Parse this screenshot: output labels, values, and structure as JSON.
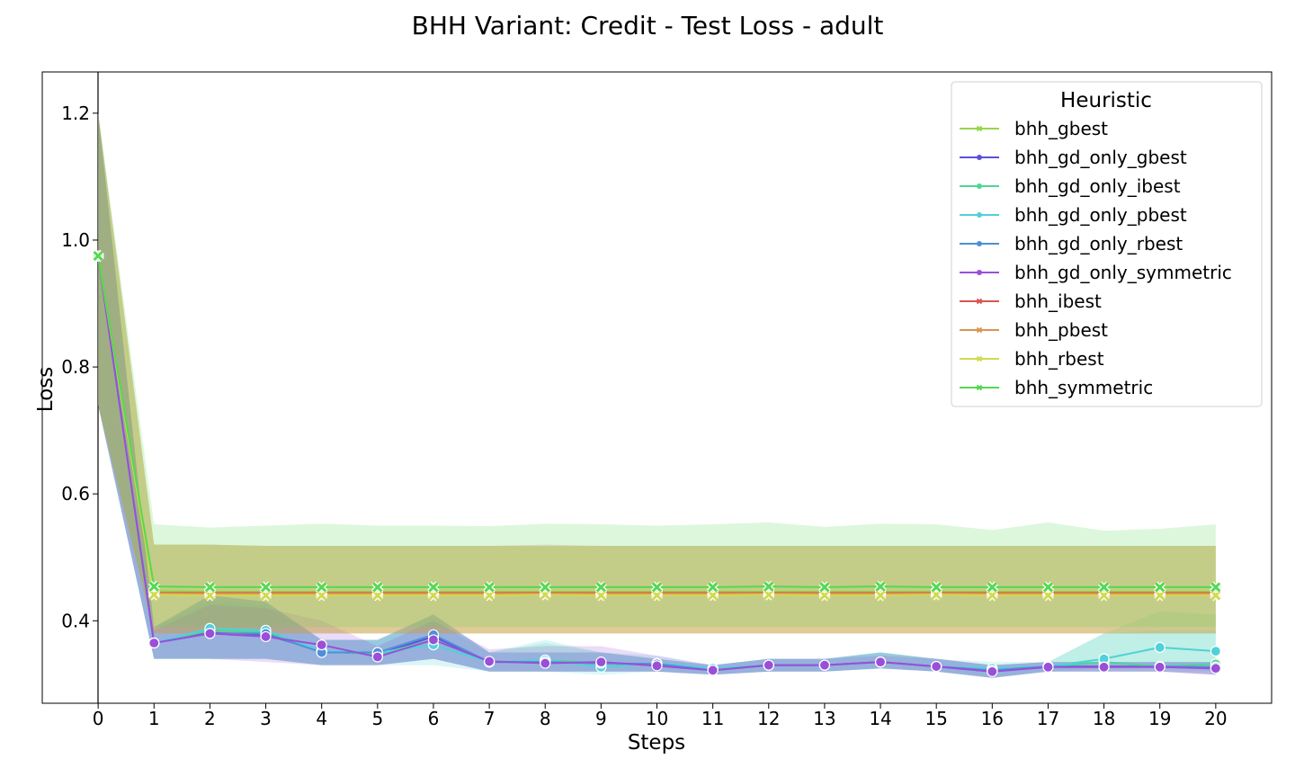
{
  "chart_data": {
    "type": "line",
    "title": "BHH Variant: Credit - Test Loss - adult",
    "xlabel": "Steps",
    "ylabel": "Loss",
    "x": [
      0,
      1,
      2,
      3,
      4,
      5,
      6,
      7,
      8,
      9,
      10,
      11,
      12,
      13,
      14,
      15,
      16,
      17,
      18,
      19,
      20
    ],
    "xlim": [
      -1,
      21
    ],
    "ylim": [
      0.27,
      1.265
    ],
    "yticks": [
      0.4,
      0.6,
      0.8,
      1.0,
      1.2
    ],
    "ytick_labels": [
      "0.4",
      "0.6",
      "0.8",
      "1.0",
      "1.2"
    ],
    "grid": false,
    "legend": {
      "title": "Heuristic",
      "placement": "top-right"
    },
    "series": [
      {
        "name": "bhh_gbest",
        "color": "#96d64a",
        "marker": "x",
        "values": [
          0.975,
          0.447,
          0.446,
          0.446,
          0.446,
          0.446,
          0.446,
          0.446,
          0.446,
          0.446,
          0.446,
          0.446,
          0.446,
          0.446,
          0.446,
          0.446,
          0.446,
          0.446,
          0.446,
          0.446,
          0.446
        ],
        "band": [
          [
            0.74,
            1.2
          ],
          [
            0.38,
            0.52
          ],
          [
            0.38,
            0.52
          ],
          [
            0.38,
            0.518
          ],
          [
            0.38,
            0.518
          ],
          [
            0.38,
            0.518
          ],
          [
            0.38,
            0.518
          ],
          [
            0.38,
            0.518
          ],
          [
            0.38,
            0.518
          ],
          [
            0.38,
            0.518
          ],
          [
            0.38,
            0.518
          ],
          [
            0.38,
            0.518
          ],
          [
            0.38,
            0.518
          ],
          [
            0.38,
            0.518
          ],
          [
            0.38,
            0.518
          ],
          [
            0.38,
            0.518
          ],
          [
            0.38,
            0.518
          ],
          [
            0.38,
            0.518
          ],
          [
            0.38,
            0.518
          ],
          [
            0.38,
            0.518
          ],
          [
            0.38,
            0.518
          ]
        ]
      },
      {
        "name": "bhh_gd_only_gbest",
        "color": "#5a52d9",
        "marker": "o",
        "values": [
          0.975,
          0.365,
          0.381,
          0.378,
          0.352,
          0.347,
          0.375,
          0.335,
          0.335,
          0.333,
          0.33,
          0.322,
          0.33,
          0.33,
          0.335,
          0.328,
          0.32,
          0.328,
          0.328,
          0.328,
          0.326
        ],
        "band": [
          [
            0.74,
            1.2
          ],
          [
            0.34,
            0.39
          ],
          [
            0.34,
            0.44
          ],
          [
            0.34,
            0.43
          ],
          [
            0.33,
            0.37
          ],
          [
            0.33,
            0.37
          ],
          [
            0.34,
            0.41
          ],
          [
            0.32,
            0.35
          ],
          [
            0.32,
            0.35
          ],
          [
            0.32,
            0.35
          ],
          [
            0.32,
            0.34
          ],
          [
            0.315,
            0.33
          ],
          [
            0.32,
            0.34
          ],
          [
            0.32,
            0.34
          ],
          [
            0.325,
            0.35
          ],
          [
            0.32,
            0.34
          ],
          [
            0.31,
            0.33
          ],
          [
            0.32,
            0.335
          ],
          [
            0.32,
            0.335
          ],
          [
            0.32,
            0.335
          ],
          [
            0.315,
            0.335
          ]
        ]
      },
      {
        "name": "bhh_gd_only_ibest",
        "color": "#4cd696",
        "marker": "o",
        "values": [
          0.975,
          0.365,
          0.385,
          0.382,
          0.352,
          0.347,
          0.37,
          0.335,
          0.338,
          0.333,
          0.33,
          0.322,
          0.33,
          0.33,
          0.335,
          0.328,
          0.322,
          0.328,
          0.335,
          0.328,
          0.332
        ],
        "band": [
          [
            0.74,
            1.2
          ],
          [
            0.34,
            0.39
          ],
          [
            0.34,
            0.44
          ],
          [
            0.34,
            0.43
          ],
          [
            0.33,
            0.37
          ],
          [
            0.33,
            0.37
          ],
          [
            0.34,
            0.41
          ],
          [
            0.32,
            0.35
          ],
          [
            0.32,
            0.365
          ],
          [
            0.32,
            0.35
          ],
          [
            0.32,
            0.34
          ],
          [
            0.315,
            0.33
          ],
          [
            0.32,
            0.34
          ],
          [
            0.32,
            0.34
          ],
          [
            0.325,
            0.35
          ],
          [
            0.32,
            0.34
          ],
          [
            0.31,
            0.33
          ],
          [
            0.32,
            0.335
          ],
          [
            0.32,
            0.38
          ],
          [
            0.32,
            0.415
          ],
          [
            0.32,
            0.41
          ]
        ]
      },
      {
        "name": "bhh_gd_only_pbest",
        "color": "#4fd1d9",
        "marker": "o",
        "values": [
          0.975,
          0.365,
          0.388,
          0.385,
          0.352,
          0.35,
          0.362,
          0.335,
          0.338,
          0.327,
          0.333,
          0.325,
          0.33,
          0.33,
          0.335,
          0.328,
          0.325,
          0.328,
          0.34,
          0.358,
          0.352
        ],
        "band": [
          [
            0.74,
            1.2
          ],
          [
            0.34,
            0.39
          ],
          [
            0.34,
            0.43
          ],
          [
            0.34,
            0.425
          ],
          [
            0.33,
            0.37
          ],
          [
            0.33,
            0.37
          ],
          [
            0.33,
            0.4
          ],
          [
            0.32,
            0.35
          ],
          [
            0.32,
            0.37
          ],
          [
            0.315,
            0.35
          ],
          [
            0.32,
            0.345
          ],
          [
            0.315,
            0.33
          ],
          [
            0.32,
            0.34
          ],
          [
            0.32,
            0.34
          ],
          [
            0.325,
            0.35
          ],
          [
            0.32,
            0.34
          ],
          [
            0.31,
            0.335
          ],
          [
            0.32,
            0.335
          ],
          [
            0.325,
            0.38
          ],
          [
            0.33,
            0.385
          ],
          [
            0.32,
            0.385
          ]
        ]
      },
      {
        "name": "bhh_gd_only_rbest",
        "color": "#4f8fd9",
        "marker": "o",
        "values": [
          0.975,
          0.365,
          0.38,
          0.38,
          0.35,
          0.35,
          0.378,
          0.335,
          0.335,
          0.333,
          0.332,
          0.322,
          0.33,
          0.33,
          0.335,
          0.328,
          0.322,
          0.328,
          0.327,
          0.328,
          0.327
        ],
        "band": [
          [
            0.74,
            1.2
          ],
          [
            0.34,
            0.39
          ],
          [
            0.34,
            0.44
          ],
          [
            0.34,
            0.43
          ],
          [
            0.33,
            0.37
          ],
          [
            0.33,
            0.37
          ],
          [
            0.34,
            0.41
          ],
          [
            0.32,
            0.35
          ],
          [
            0.32,
            0.35
          ],
          [
            0.32,
            0.35
          ],
          [
            0.32,
            0.34
          ],
          [
            0.315,
            0.33
          ],
          [
            0.32,
            0.34
          ],
          [
            0.32,
            0.34
          ],
          [
            0.325,
            0.35
          ],
          [
            0.32,
            0.34
          ],
          [
            0.31,
            0.33
          ],
          [
            0.32,
            0.335
          ],
          [
            0.32,
            0.335
          ],
          [
            0.32,
            0.335
          ],
          [
            0.315,
            0.335
          ]
        ]
      },
      {
        "name": "bhh_gd_only_symmetric",
        "color": "#9a4fd9",
        "marker": "o",
        "values": [
          0.975,
          0.365,
          0.38,
          0.375,
          0.362,
          0.343,
          0.37,
          0.336,
          0.333,
          0.335,
          0.329,
          0.322,
          0.33,
          0.33,
          0.335,
          0.328,
          0.32,
          0.327,
          0.327,
          0.327,
          0.325
        ],
        "band": [
          [
            0.74,
            1.2
          ],
          [
            0.34,
            0.385
          ],
          [
            0.34,
            0.425
          ],
          [
            0.335,
            0.42
          ],
          [
            0.33,
            0.4
          ],
          [
            0.33,
            0.36
          ],
          [
            0.34,
            0.4
          ],
          [
            0.32,
            0.355
          ],
          [
            0.32,
            0.36
          ],
          [
            0.32,
            0.36
          ],
          [
            0.32,
            0.345
          ],
          [
            0.315,
            0.33
          ],
          [
            0.32,
            0.34
          ],
          [
            0.32,
            0.34
          ],
          [
            0.325,
            0.345
          ],
          [
            0.32,
            0.34
          ],
          [
            0.31,
            0.33
          ],
          [
            0.32,
            0.335
          ],
          [
            0.32,
            0.335
          ],
          [
            0.32,
            0.335
          ],
          [
            0.315,
            0.335
          ]
        ]
      },
      {
        "name": "bhh_ibest",
        "color": "#d9554f",
        "marker": "x",
        "values": [
          0.975,
          0.444,
          0.444,
          0.444,
          0.444,
          0.444,
          0.444,
          0.444,
          0.444,
          0.444,
          0.444,
          0.444,
          0.444,
          0.444,
          0.444,
          0.444,
          0.444,
          0.444,
          0.444,
          0.444,
          0.444
        ],
        "band": [
          [
            0.74,
            1.2
          ],
          [
            0.38,
            0.52
          ],
          [
            0.38,
            0.52
          ],
          [
            0.38,
            0.518
          ],
          [
            0.38,
            0.518
          ],
          [
            0.38,
            0.518
          ],
          [
            0.38,
            0.518
          ],
          [
            0.38,
            0.518
          ],
          [
            0.38,
            0.52
          ],
          [
            0.38,
            0.518
          ],
          [
            0.38,
            0.518
          ],
          [
            0.38,
            0.518
          ],
          [
            0.38,
            0.518
          ],
          [
            0.38,
            0.518
          ],
          [
            0.38,
            0.518
          ],
          [
            0.38,
            0.518
          ],
          [
            0.38,
            0.518
          ],
          [
            0.38,
            0.518
          ],
          [
            0.38,
            0.518
          ],
          [
            0.38,
            0.518
          ],
          [
            0.38,
            0.518
          ]
        ]
      },
      {
        "name": "bhh_pbest",
        "color": "#d9964f",
        "marker": "x",
        "values": [
          0.975,
          0.443,
          0.443,
          0.443,
          0.443,
          0.443,
          0.443,
          0.443,
          0.443,
          0.443,
          0.443,
          0.443,
          0.443,
          0.443,
          0.443,
          0.443,
          0.443,
          0.443,
          0.443,
          0.443,
          0.443
        ],
        "band": [
          [
            0.74,
            1.2
          ],
          [
            0.38,
            0.52
          ],
          [
            0.38,
            0.52
          ],
          [
            0.38,
            0.518
          ],
          [
            0.38,
            0.518
          ],
          [
            0.38,
            0.518
          ],
          [
            0.38,
            0.518
          ],
          [
            0.38,
            0.518
          ],
          [
            0.38,
            0.518
          ],
          [
            0.38,
            0.518
          ],
          [
            0.38,
            0.518
          ],
          [
            0.38,
            0.518
          ],
          [
            0.38,
            0.518
          ],
          [
            0.38,
            0.518
          ],
          [
            0.38,
            0.518
          ],
          [
            0.38,
            0.518
          ],
          [
            0.38,
            0.518
          ],
          [
            0.38,
            0.518
          ],
          [
            0.38,
            0.518
          ],
          [
            0.38,
            0.518
          ],
          [
            0.38,
            0.518
          ]
        ]
      },
      {
        "name": "bhh_rbest",
        "color": "#d2d94f",
        "marker": "x",
        "values": [
          0.975,
          0.441,
          0.44,
          0.44,
          0.44,
          0.44,
          0.44,
          0.44,
          0.441,
          0.44,
          0.44,
          0.44,
          0.441,
          0.44,
          0.44,
          0.441,
          0.44,
          0.44,
          0.44,
          0.44,
          0.44
        ],
        "band": [
          [
            0.74,
            1.2
          ],
          [
            0.38,
            0.52
          ],
          [
            0.38,
            0.52
          ],
          [
            0.38,
            0.518
          ],
          [
            0.38,
            0.518
          ],
          [
            0.38,
            0.518
          ],
          [
            0.38,
            0.518
          ],
          [
            0.38,
            0.518
          ],
          [
            0.38,
            0.518
          ],
          [
            0.38,
            0.518
          ],
          [
            0.38,
            0.518
          ],
          [
            0.38,
            0.518
          ],
          [
            0.38,
            0.518
          ],
          [
            0.38,
            0.518
          ],
          [
            0.38,
            0.518
          ],
          [
            0.38,
            0.518
          ],
          [
            0.38,
            0.518
          ],
          [
            0.38,
            0.518
          ],
          [
            0.38,
            0.518
          ],
          [
            0.38,
            0.518
          ],
          [
            0.38,
            0.518
          ]
        ]
      },
      {
        "name": "bhh_symmetric",
        "color": "#55d94f",
        "marker": "x",
        "values": [
          0.975,
          0.454,
          0.453,
          0.453,
          0.453,
          0.453,
          0.453,
          0.453,
          0.453,
          0.453,
          0.453,
          0.453,
          0.454,
          0.453,
          0.454,
          0.453,
          0.453,
          0.453,
          0.453,
          0.453,
          0.453
        ],
        "band": [
          [
            0.74,
            1.2
          ],
          [
            0.39,
            0.552
          ],
          [
            0.39,
            0.547
          ],
          [
            0.39,
            0.55
          ],
          [
            0.39,
            0.553
          ],
          [
            0.39,
            0.55
          ],
          [
            0.39,
            0.55
          ],
          [
            0.39,
            0.549
          ],
          [
            0.39,
            0.553
          ],
          [
            0.39,
            0.552
          ],
          [
            0.39,
            0.55
          ],
          [
            0.39,
            0.552
          ],
          [
            0.39,
            0.555
          ],
          [
            0.39,
            0.548
          ],
          [
            0.39,
            0.553
          ],
          [
            0.39,
            0.552
          ],
          [
            0.39,
            0.543
          ],
          [
            0.39,
            0.555
          ],
          [
            0.39,
            0.542
          ],
          [
            0.39,
            0.545
          ],
          [
            0.39,
            0.552
          ]
        ]
      }
    ]
  }
}
